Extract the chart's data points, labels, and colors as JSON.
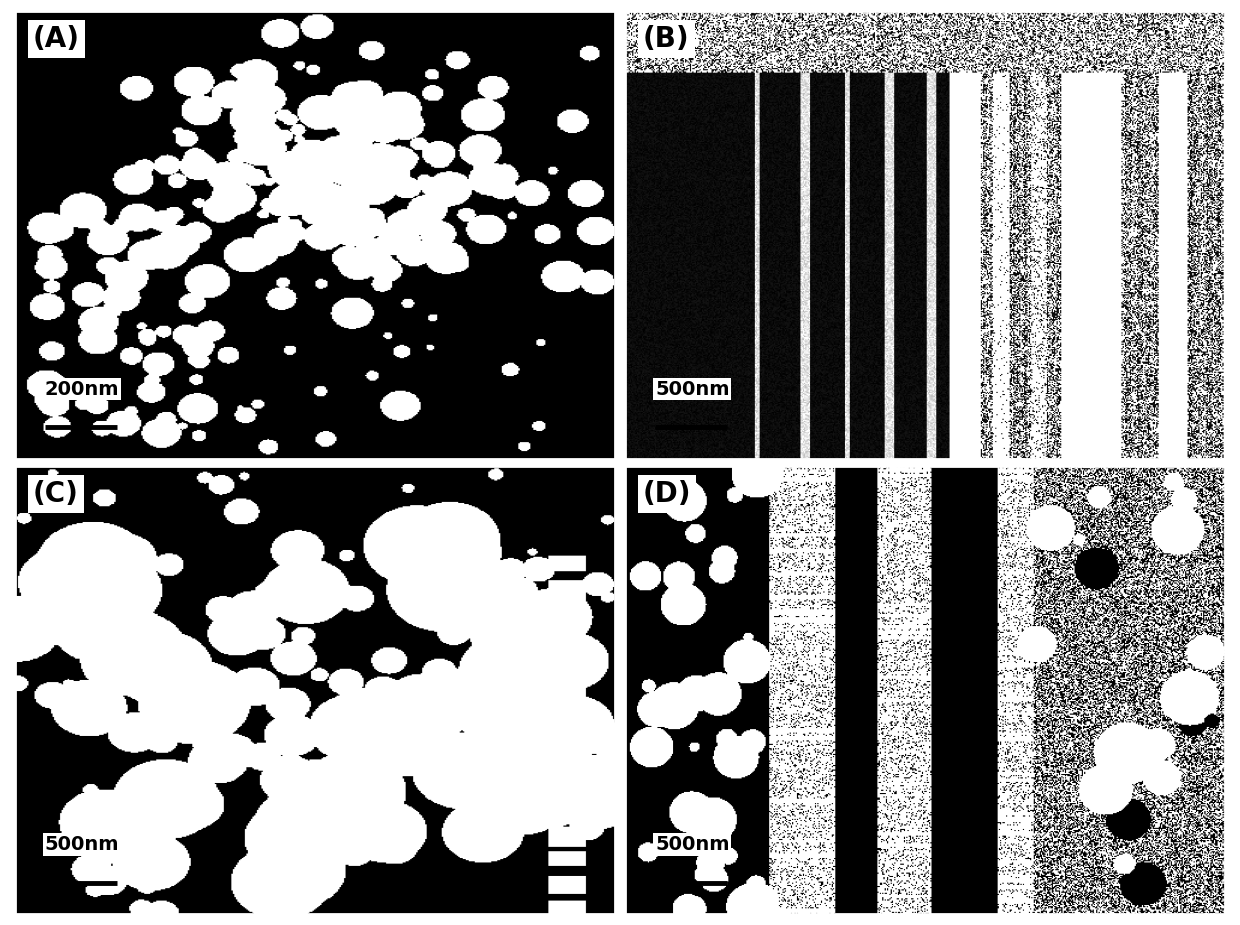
{
  "labels": [
    "(A)",
    "(B)",
    "(C)",
    "(D)"
  ],
  "scale_labels": [
    "200nm",
    "500nm",
    "500nm",
    "500nm"
  ],
  "background_color": "#000000",
  "label_box_color": "#ffffff",
  "label_text_color": "#000000",
  "fig_bg": "#ffffff",
  "seeds": [
    42,
    7,
    13,
    99
  ]
}
